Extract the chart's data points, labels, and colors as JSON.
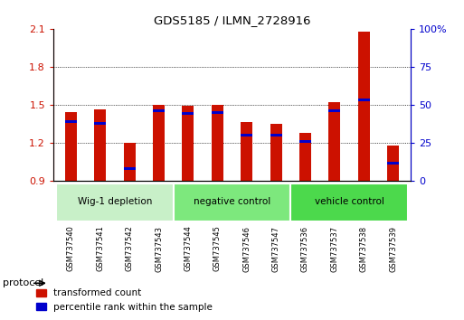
{
  "title": "GDS5185 / ILMN_2728916",
  "samples": [
    "GSM737540",
    "GSM737541",
    "GSM737542",
    "GSM737543",
    "GSM737544",
    "GSM737545",
    "GSM737546",
    "GSM737547",
    "GSM737536",
    "GSM737537",
    "GSM737538",
    "GSM737539"
  ],
  "red_values": [
    1.44,
    1.46,
    1.2,
    1.5,
    1.49,
    1.5,
    1.36,
    1.35,
    1.28,
    1.52,
    2.08,
    1.18
  ],
  "blue_values": [
    1.365,
    1.355,
    0.995,
    1.455,
    1.43,
    1.44,
    1.26,
    1.26,
    1.21,
    1.455,
    1.54,
    1.04
  ],
  "ymin": 0.9,
  "ymax": 2.1,
  "yticks": [
    0.9,
    1.2,
    1.5,
    1.8,
    2.1
  ],
  "right_yticks": [
    0,
    25,
    50,
    75,
    100
  ],
  "right_ytick_labels": [
    "0",
    "25",
    "50",
    "75",
    "100%"
  ],
  "groups": [
    {
      "label": "Wig-1 depletion",
      "start": 0,
      "end": 4,
      "color": "#c8f0c8"
    },
    {
      "label": "negative control",
      "start": 4,
      "end": 8,
      "color": "#7de87d"
    },
    {
      "label": "vehicle control",
      "start": 8,
      "end": 12,
      "color": "#4cd94c"
    }
  ],
  "protocol_label": "protocol",
  "bar_width": 0.4,
  "red_color": "#cc1100",
  "blue_color": "#0000cc",
  "bg_color": "#ffffff",
  "legend_red": "transformed count",
  "legend_blue": "percentile rank within the sample"
}
